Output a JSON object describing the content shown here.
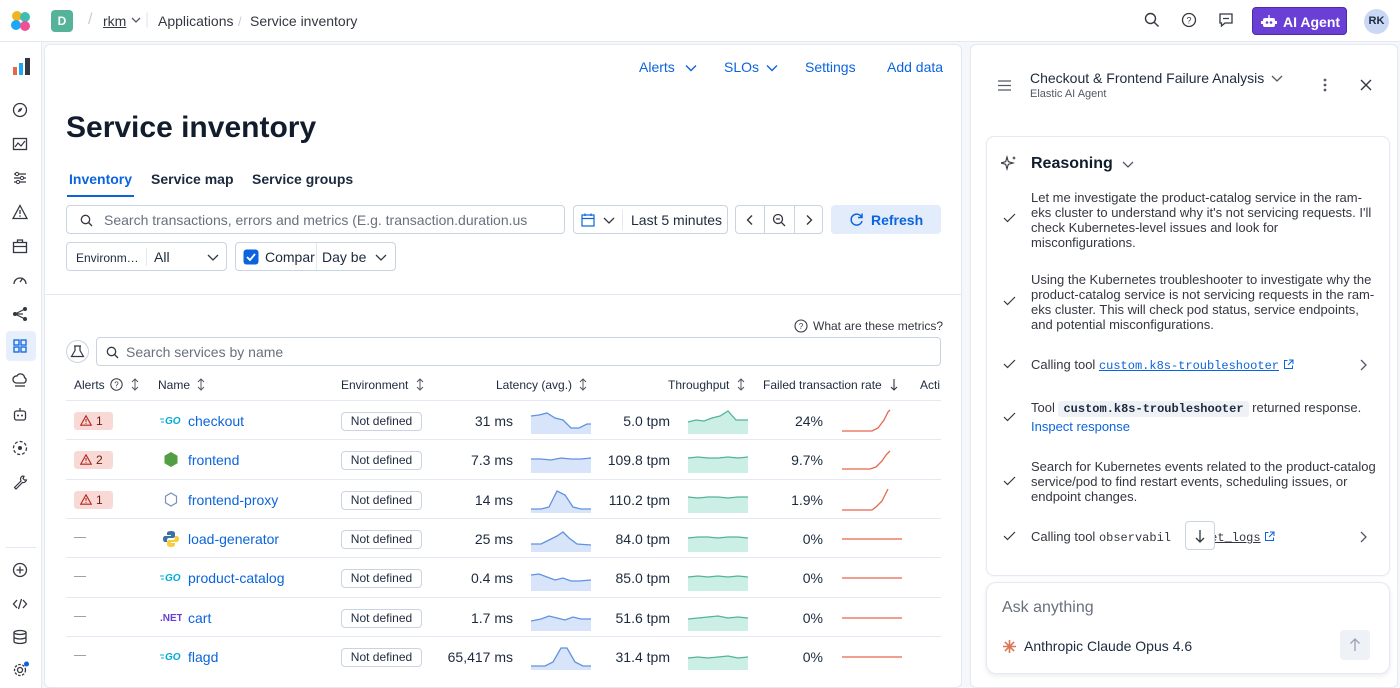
{
  "topbar": {
    "space_letter": "D",
    "breadcrumbs": [
      "rkm",
      "Applications",
      "Service inventory"
    ],
    "ai_button_label": "AI Agent",
    "avatar_initials": "RK"
  },
  "header_links": {
    "alerts": "Alerts",
    "slos": "SLOs",
    "settings": "Settings",
    "add_data": "Add data"
  },
  "page": {
    "title": "Service inventory",
    "tabs": [
      "Inventory",
      "Service map",
      "Service groups"
    ],
    "active_tab": "Inventory"
  },
  "filters": {
    "search_placeholder": "Search transactions, errors and metrics (E.g. transaction.duration.us",
    "time_range": "Last 5 minutes",
    "refresh_label": "Refresh",
    "environment_label": "Environm…",
    "environment_value": "All",
    "compare_label": "Compar",
    "compare_value": "Day be"
  },
  "table": {
    "metrics_help": "What are these metrics?",
    "search_placeholder": "Search services by name",
    "columns": [
      "Alerts",
      "Name",
      "Environment",
      "Latency (avg.)",
      "Throughput",
      "Failed transaction rate",
      "Acti"
    ],
    "rows": [
      {
        "alerts": "1",
        "icon": "go-icon",
        "name": "checkout",
        "environment": "Not defined",
        "latency": "31 ms",
        "throughput": "5.0 tpm",
        "failed_rate": "24%"
      },
      {
        "alerts": "2",
        "icon": "nodejs-icon",
        "name": "frontend",
        "environment": "Not defined",
        "latency": "7.3 ms",
        "throughput": "109.8 tpm",
        "failed_rate": "9.7%"
      },
      {
        "alerts": "1",
        "icon": "hexagon-icon",
        "name": "frontend-proxy",
        "environment": "Not defined",
        "latency": "14 ms",
        "throughput": "110.2 tpm",
        "failed_rate": "1.9%"
      },
      {
        "alerts": "",
        "icon": "python-icon",
        "name": "load-generator",
        "environment": "Not defined",
        "latency": "25 ms",
        "throughput": "84.0 tpm",
        "failed_rate": "0%"
      },
      {
        "alerts": "",
        "icon": "go-icon",
        "name": "product-catalog",
        "environment": "Not defined",
        "latency": "0.4 ms",
        "throughput": "85.0 tpm",
        "failed_rate": "0%"
      },
      {
        "alerts": "",
        "icon": "dotnet-icon",
        "name": "cart",
        "environment": "Not defined",
        "latency": "1.7 ms",
        "throughput": "51.6 tpm",
        "failed_rate": "0%"
      },
      {
        "alerts": "",
        "icon": "go-icon",
        "name": "flagd",
        "environment": "Not defined",
        "latency": "65,417 ms",
        "throughput": "31.4 tpm",
        "failed_rate": "0%"
      }
    ]
  },
  "agent": {
    "conversation_title": "Checkout & Frontend Failure Analysis",
    "subtitle": "Elastic AI Agent",
    "reasoning_title": "Reasoning",
    "steps": [
      {
        "text": "Let me investigate the product-catalog service in the ram-eks cluster to understand why it's not servicing requests. I'll check Kubernetes-level issues and look for misconfigurations."
      },
      {
        "text": "Using the Kubernetes troubleshooter to investigate why the product-catalog service is not servicing requests in the ram-eks cluster. This will check pod status, service endpoints, and potential misconfigurations."
      },
      {
        "prefix": "Calling tool",
        "tool": "custom.k8s-troubleshooter"
      },
      {
        "prefix": "Tool",
        "tool": "custom.k8s-troubleshooter",
        "suffix": "returned response.",
        "link": "Inspect response"
      },
      {
        "text": "Search for Kubernetes events related to the product-catalog service/pod to find restart events, scheduling issues, or endpoint changes."
      },
      {
        "prefix": "Calling tool",
        "tool_a": "observabil",
        "tool_b": "get_logs"
      }
    ],
    "input_placeholder": "Ask anything",
    "model_name": "Anthropic Claude Opus 4.6"
  },
  "colors": {
    "accent": "#0b64dd",
    "ai_purple": "#6a3fd6",
    "latency_spark": "#6092e0",
    "throughput_spark": "#54b399",
    "failed_spark": "#e7664c",
    "alert_badge_bg": "#f8d9d6"
  }
}
